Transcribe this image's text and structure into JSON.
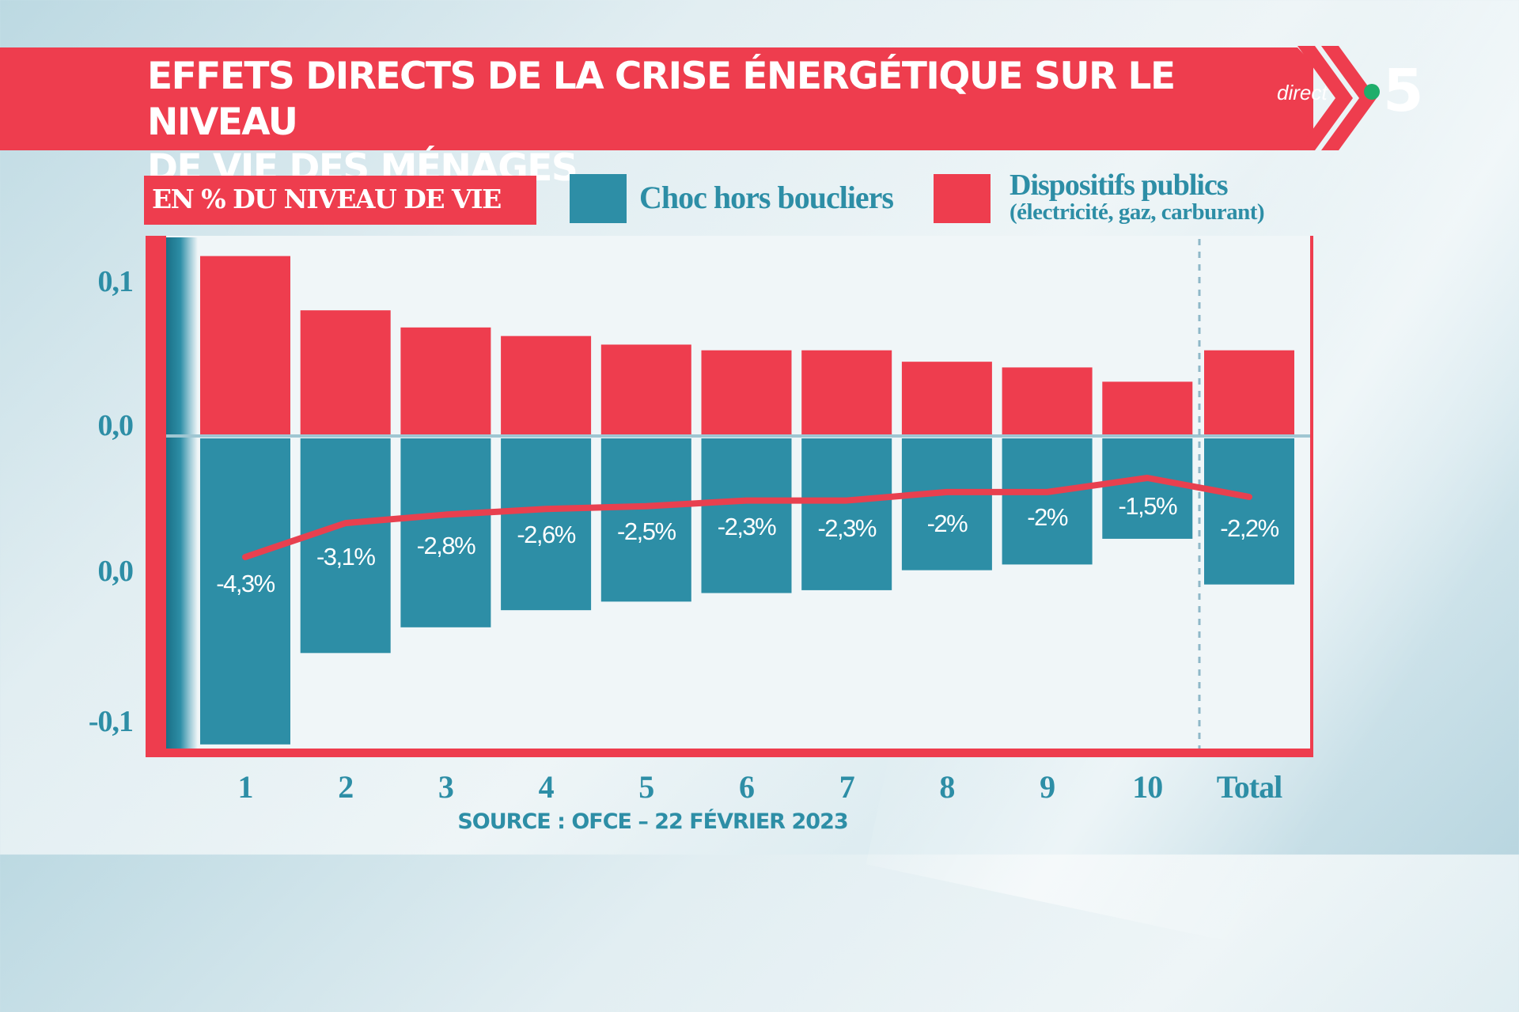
{
  "banner": {
    "title_line1": "EFFETS DIRECTS DE LA CRISE ÉNERGÉTIQUE SUR LE NIVEAU",
    "title_line2": "DE VIE DES MÉNAGES"
  },
  "logo": {
    "direct": "direct",
    "channel": "5",
    "dot_color": "#1fae6b"
  },
  "unit_label": "EN % DU NIVEAU DE VIE",
  "legend": {
    "blue_label": "Choc hors boucliers",
    "red_label": "Dispositifs publics",
    "red_sublabel": "(électricité, gaz, carburant)"
  },
  "source": "SOURCE : OFCE – 22 FÉVRIER 2023",
  "colors": {
    "red": "#ee3d4e",
    "blue": "#2d8ea6",
    "axis_text": "#2d8ea6"
  },
  "chart_data": {
    "type": "bar",
    "categories": [
      "1",
      "2",
      "3",
      "4",
      "5",
      "6",
      "7",
      "8",
      "9",
      "10",
      "Total"
    ],
    "y_tick_labels": [
      "0,1",
      "0,0",
      "0,0",
      "-0,1"
    ],
    "series": [
      {
        "name": "Choc hors boucliers",
        "values": [
          -0.108,
          -0.076,
          -0.067,
          -0.061,
          -0.058,
          -0.055,
          -0.054,
          -0.047,
          -0.045,
          -0.036,
          -0.052
        ]
      },
      {
        "name": "Dispositifs publics",
        "values": [
          0.063,
          0.044,
          0.038,
          0.035,
          0.032,
          0.03,
          0.03,
          0.026,
          0.024,
          0.019,
          0.03
        ]
      }
    ],
    "line": {
      "labels": [
        "-4,3%",
        "-3,1%",
        "-2,8%",
        "-2,6%",
        "-2,5%",
        "-2,3%",
        "-2,3%",
        "-2%",
        "-2%",
        "-1,5%",
        "-2,2%"
      ],
      "values": [
        -4.3,
        -3.1,
        -2.8,
        -2.6,
        -2.5,
        -2.3,
        -2.3,
        -2.0,
        -2.0,
        -1.5,
        -2.2
      ]
    },
    "ylim": [
      -0.11,
      0.064
    ]
  }
}
